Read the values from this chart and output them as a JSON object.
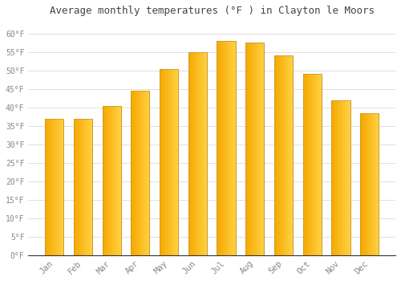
{
  "title": "Average monthly temperatures (°F ) in Clayton le Moors",
  "months": [
    "Jan",
    "Feb",
    "Mar",
    "Apr",
    "May",
    "Jun",
    "Jul",
    "Aug",
    "Sep",
    "Oct",
    "Nov",
    "Dec"
  ],
  "values": [
    37,
    37,
    40.5,
    44.5,
    50.5,
    55,
    58,
    57.5,
    54,
    49,
    42,
    38.5
  ],
  "bar_color_left": "#F5A800",
  "bar_color_right": "#FFD040",
  "bar_edge_color": "#C8922A",
  "background_color": "#ffffff",
  "grid_color": "#e0e0e0",
  "text_color": "#888888",
  "title_color": "#444444",
  "ylim": [
    0,
    63
  ],
  "yticks": [
    0,
    5,
    10,
    15,
    20,
    25,
    30,
    35,
    40,
    45,
    50,
    55,
    60
  ],
  "ylabel_format": "°F",
  "figsize": [
    5.0,
    3.5
  ],
  "dpi": 100
}
